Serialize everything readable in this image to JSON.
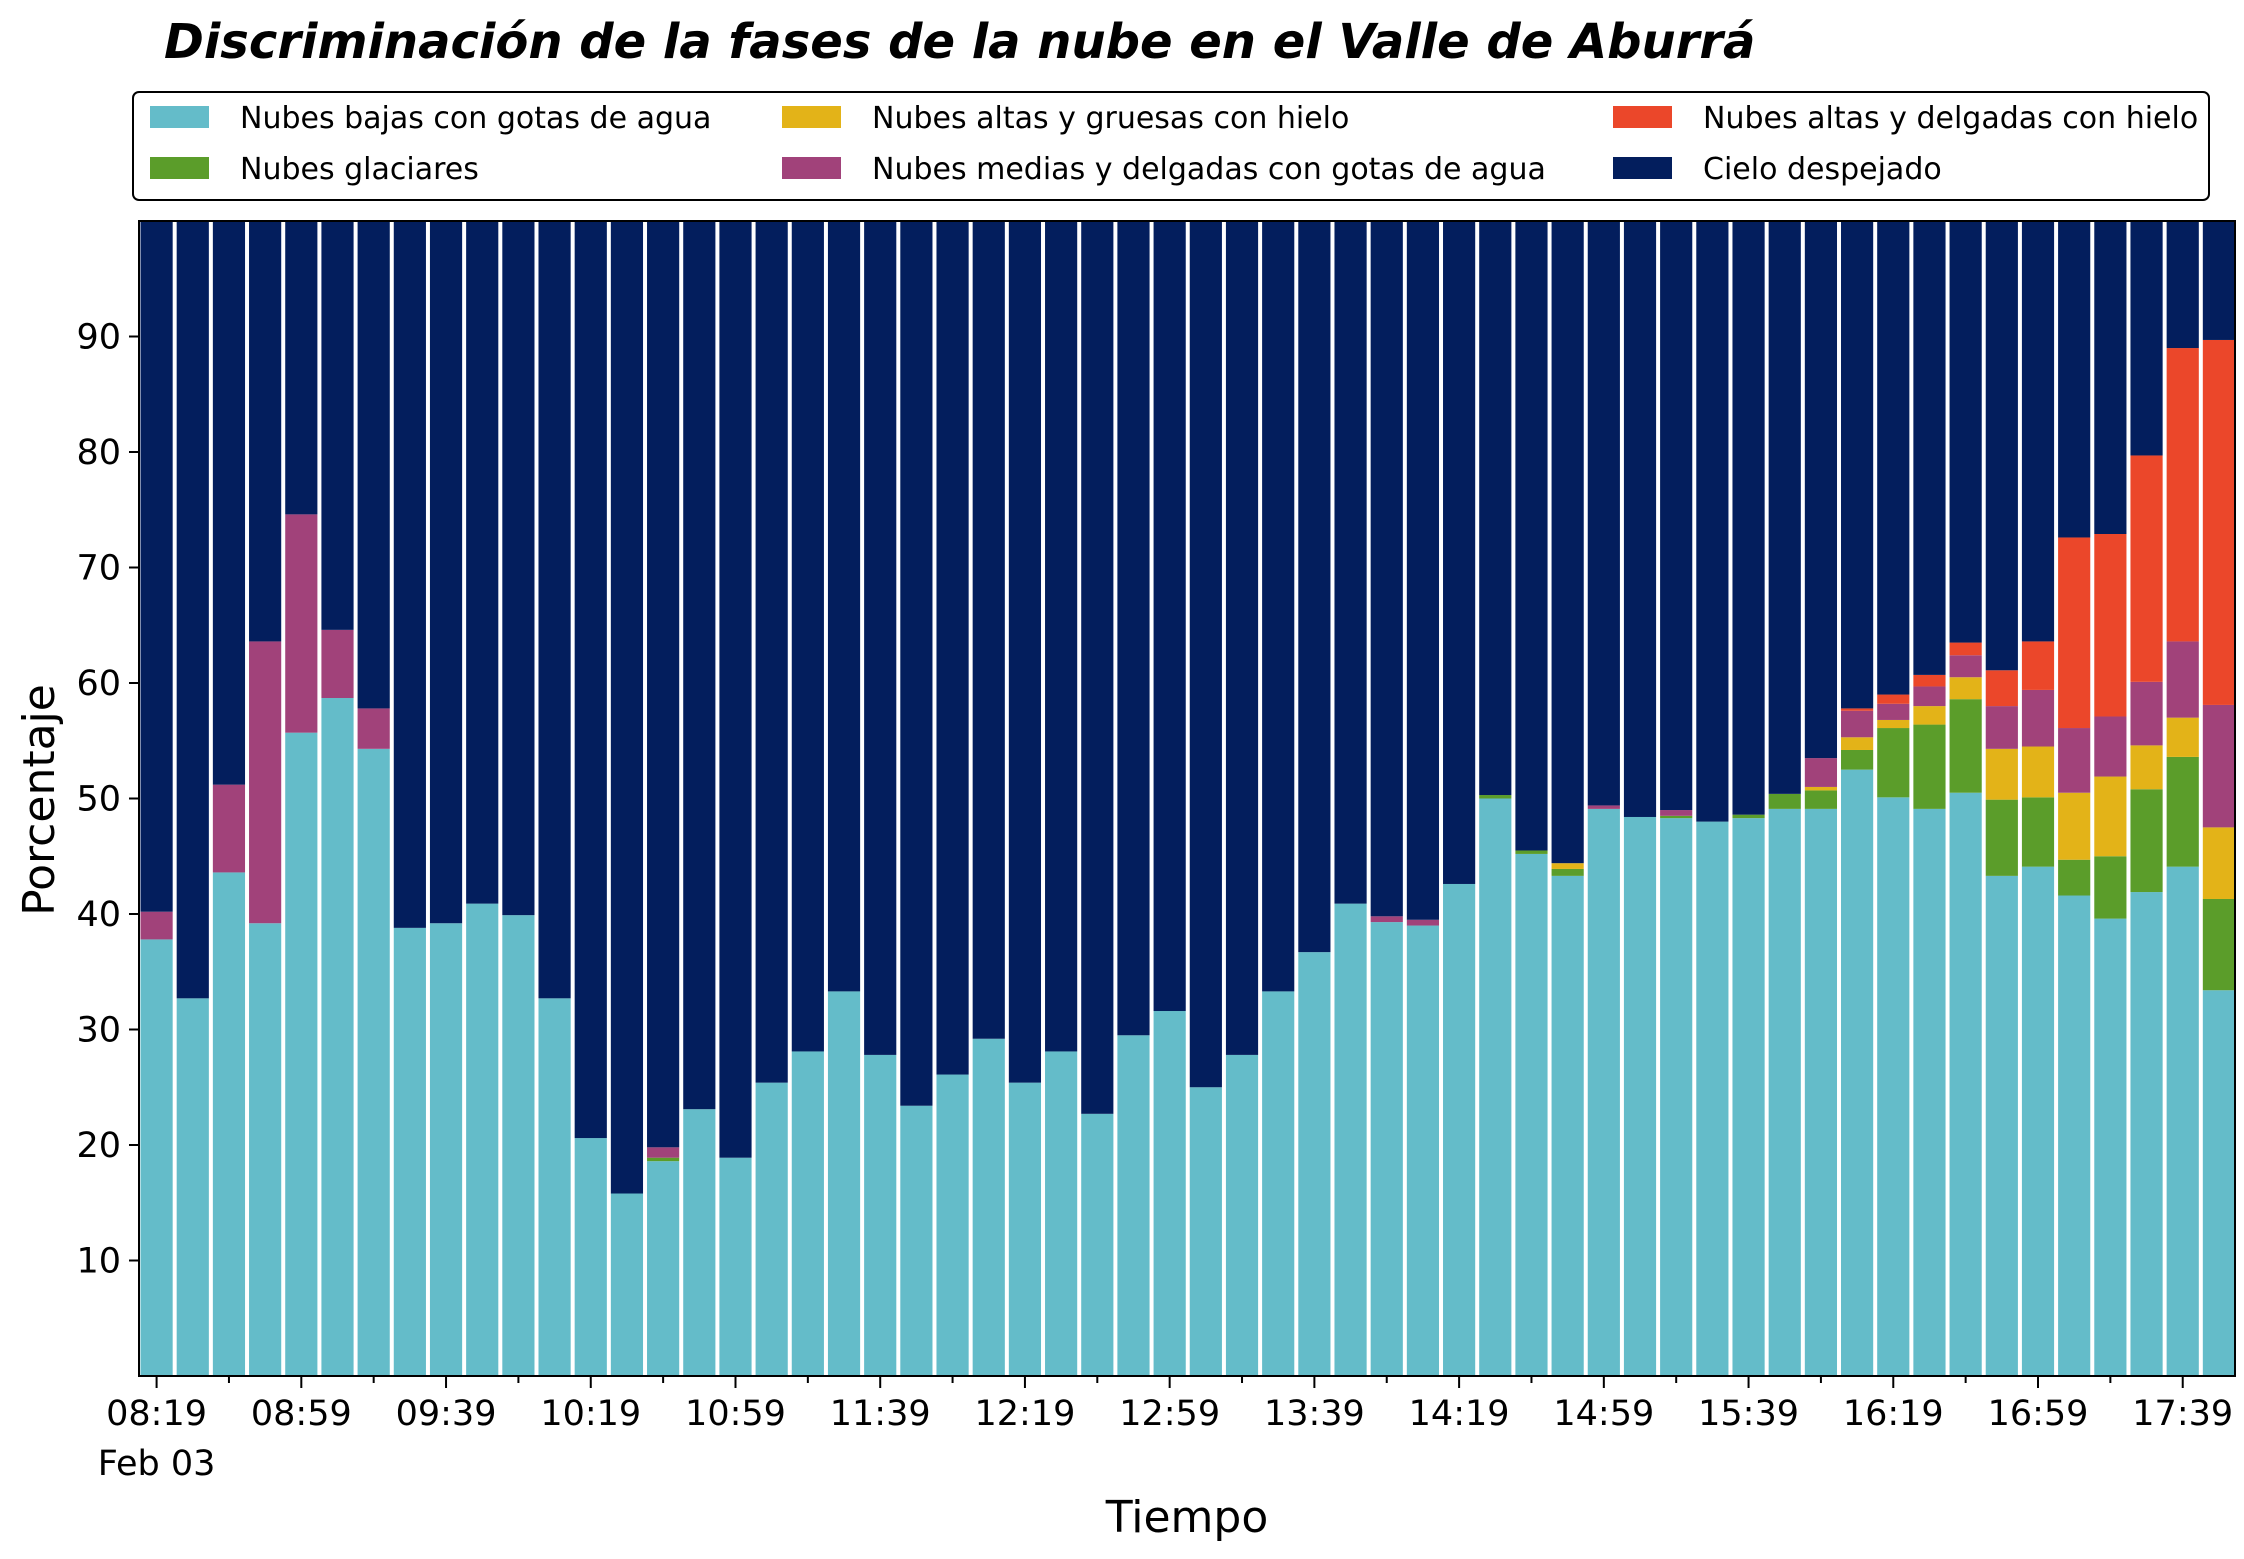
{
  "chart_data": {
    "type": "bar",
    "stacked": true,
    "title": "Discriminación de la fases de la nube en el Valle de Aburrá",
    "xlabel": "Tiempo",
    "ylabel": "Porcentaje",
    "ylim": [
      0,
      100
    ],
    "yticks": [
      10,
      20,
      30,
      40,
      50,
      60,
      70,
      80,
      90
    ],
    "grid": false,
    "legend_placement": "top",
    "x_start_minute": 499,
    "interval_minutes": 10,
    "x": [
      "08:19",
      "08:29",
      "08:39",
      "08:49",
      "08:59",
      "09:09",
      "09:19",
      "09:29",
      "09:39",
      "09:49",
      "09:59",
      "10:09",
      "10:19",
      "10:29",
      "10:39",
      "10:49",
      "10:59",
      "11:09",
      "11:19",
      "11:29",
      "11:39",
      "11:49",
      "11:59",
      "12:09",
      "12:19",
      "12:29",
      "12:39",
      "12:49",
      "12:59",
      "13:09",
      "13:19",
      "13:29",
      "13:39",
      "13:49",
      "13:59",
      "14:09",
      "14:19",
      "14:29",
      "14:39",
      "14:49",
      "14:59",
      "15:09",
      "15:19",
      "15:29",
      "15:39",
      "15:49",
      "15:59",
      "16:09",
      "16:19",
      "16:29",
      "16:39",
      "16:49",
      "16:59",
      "17:09",
      "17:19",
      "17:29",
      "17:39",
      "17:49"
    ],
    "xtick_labels": [
      "08:19",
      "08:59",
      "09:39",
      "10:19",
      "10:59",
      "11:39",
      "12:19",
      "12:59",
      "13:39",
      "14:19",
      "14:59",
      "15:39",
      "16:19",
      "16:59",
      "17:39"
    ],
    "xtick_date_label": "Feb 03",
    "series": [
      {
        "name": "Nubes bajas con gotas de agua",
        "color": "#64bcc9",
        "values": [
          37.8,
          32.7,
          43.6,
          39.2,
          55.7,
          58.7,
          54.3,
          38.8,
          39.2,
          40.9,
          39.9,
          32.7,
          20.6,
          15.8,
          18.6,
          23.1,
          18.9,
          25.4,
          28.1,
          33.3,
          27.8,
          23.4,
          26.1,
          29.2,
          25.4,
          28.1,
          22.7,
          29.5,
          31.6,
          25.0,
          27.8,
          33.3,
          36.7,
          40.9,
          39.3,
          39.0,
          42.6,
          50.0,
          45.2,
          43.3,
          49.1,
          48.4,
          48.3,
          48.0,
          48.3,
          49.1,
          49.1,
          52.5,
          50.1,
          49.1,
          50.5,
          43.3,
          44.1,
          41.6,
          39.6,
          41.9,
          44.1,
          33.4
        ]
      },
      {
        "name": "Nubes glaciares",
        "color": "#5b9d2a",
        "values": [
          0,
          0,
          0,
          0,
          0,
          0,
          0,
          0,
          0,
          0,
          0,
          0,
          0,
          0,
          0.3,
          0,
          0,
          0,
          0,
          0,
          0,
          0,
          0,
          0,
          0,
          0,
          0,
          0,
          0,
          0,
          0,
          0,
          0,
          0,
          0,
          0,
          0,
          0.3,
          0.3,
          0.6,
          0,
          0,
          0.2,
          0,
          0.3,
          1.3,
          1.6,
          1.7,
          6.0,
          7.3,
          8.1,
          6.6,
          6.0,
          3.1,
          5.4,
          8.9,
          9.5,
          7.9
        ]
      },
      {
        "name": "Nubes altas y gruesas con hielo",
        "color": "#e3b318",
        "values": [
          0,
          0,
          0,
          0,
          0,
          0,
          0,
          0,
          0,
          0,
          0,
          0,
          0,
          0,
          0,
          0,
          0,
          0,
          0,
          0,
          0,
          0,
          0,
          0,
          0,
          0,
          0,
          0,
          0,
          0,
          0,
          0,
          0,
          0,
          0,
          0,
          0,
          0,
          0,
          0.5,
          0,
          0,
          0,
          0,
          0,
          0,
          0.3,
          1.1,
          0.7,
          1.6,
          1.9,
          4.4,
          4.4,
          5.8,
          6.9,
          3.8,
          3.4,
          6.2
        ]
      },
      {
        "name": "Nubes medias y delgadas con gotas de agua",
        "color": "#a1427a",
        "values": [
          2.4,
          0,
          7.6,
          24.4,
          18.9,
          5.9,
          3.5,
          0,
          0,
          0,
          0,
          0,
          0,
          0,
          0.9,
          0,
          0,
          0,
          0,
          0,
          0,
          0,
          0,
          0,
          0,
          0,
          0,
          0,
          0,
          0,
          0,
          0,
          0,
          0,
          0.5,
          0.5,
          0,
          0,
          0,
          0,
          0.3,
          0,
          0.5,
          0,
          0,
          0,
          2.5,
          2.3,
          1.4,
          1.7,
          1.9,
          3.7,
          4.9,
          5.6,
          5.2,
          5.5,
          6.6,
          10.6
        ]
      },
      {
        "name": "Nubes altas y delgadas con hielo",
        "color": "#eb472a",
        "values": [
          0,
          0,
          0,
          0,
          0,
          0,
          0,
          0,
          0,
          0,
          0,
          0,
          0,
          0,
          0,
          0,
          0,
          0,
          0,
          0,
          0,
          0,
          0,
          0,
          0,
          0,
          0,
          0,
          0,
          0,
          0,
          0,
          0,
          0,
          0,
          0,
          0,
          0,
          0,
          0,
          0,
          0,
          0,
          0,
          0,
          0,
          0,
          0.2,
          0.8,
          1.0,
          1.1,
          3.1,
          4.2,
          16.5,
          15.8,
          19.6,
          25.4,
          31.6
        ]
      },
      {
        "name": "Cielo despejado",
        "color": "#031e5d",
        "values": [
          59.8,
          67.3,
          48.8,
          36.4,
          25.4,
          35.4,
          42.2,
          61.2,
          60.8,
          59.1,
          60.1,
          67.3,
          79.4,
          84.2,
          80.2,
          76.9,
          81.1,
          74.6,
          71.9,
          66.7,
          72.2,
          76.6,
          73.9,
          70.8,
          74.6,
          71.9,
          77.3,
          70.5,
          68.4,
          75.0,
          72.2,
          66.7,
          63.3,
          59.1,
          60.2,
          60.5,
          57.4,
          49.7,
          54.5,
          55.6,
          50.6,
          51.6,
          51.0,
          52.0,
          51.4,
          49.6,
          46.5,
          42.2,
          41.0,
          39.3,
          36.5,
          38.9,
          36.4,
          27.4,
          27.1,
          20.3,
          11.0,
          10.3
        ]
      }
    ]
  }
}
